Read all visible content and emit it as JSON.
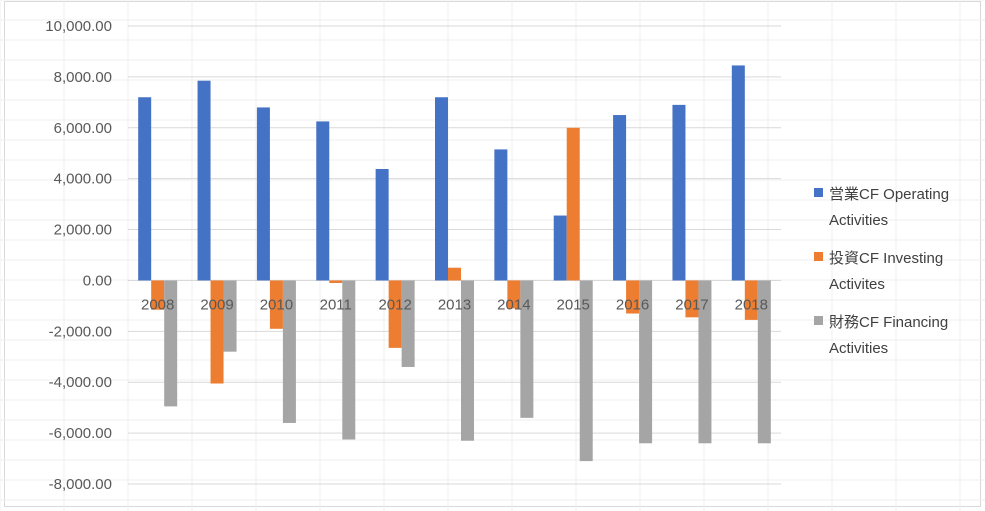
{
  "chart_data": {
    "type": "bar",
    "categories": [
      "2008",
      "2009",
      "2010",
      "2011",
      "2012",
      "2013",
      "2014",
      "2015",
      "2016",
      "2017",
      "2018"
    ],
    "series": [
      {
        "name": "営業CF Operating Activities",
        "legend_lines": [
          "営業CF Operating",
          "Activities"
        ],
        "color": "#4472c4",
        "values": [
          7200,
          7850,
          6800,
          6250,
          4380,
          7200,
          5150,
          2550,
          6500,
          6900,
          8450
        ]
      },
      {
        "name": "投資CF Investing Activites",
        "legend_lines": [
          "投資CF Investing",
          "Activites"
        ],
        "color": "#ed7d31",
        "values": [
          -1150,
          -4050,
          -1900,
          -100,
          -2650,
          500,
          -1100,
          6000,
          -1300,
          -1450,
          -1550
        ]
      },
      {
        "name": "財務CF Financing Activities",
        "legend_lines": [
          "財務CF Financing",
          "Activities"
        ],
        "color": "#a5a5a5",
        "values": [
          -4950,
          -2800,
          -5600,
          -6250,
          -3400,
          -6300,
          -5400,
          -7100,
          -6400,
          -6400,
          -6400
        ]
      }
    ],
    "y_ticks": [
      "10,000.00",
      "8,000.00",
      "6,000.00",
      "4,000.00",
      "2,000.00",
      "0.00",
      "-2,000.00",
      "-4,000.00",
      "-6,000.00",
      "-8,000.00"
    ],
    "ylim": [
      -8000,
      10000
    ],
    "grid": true,
    "legend_position": "right",
    "title": "",
    "xlabel": "",
    "ylabel": ""
  }
}
